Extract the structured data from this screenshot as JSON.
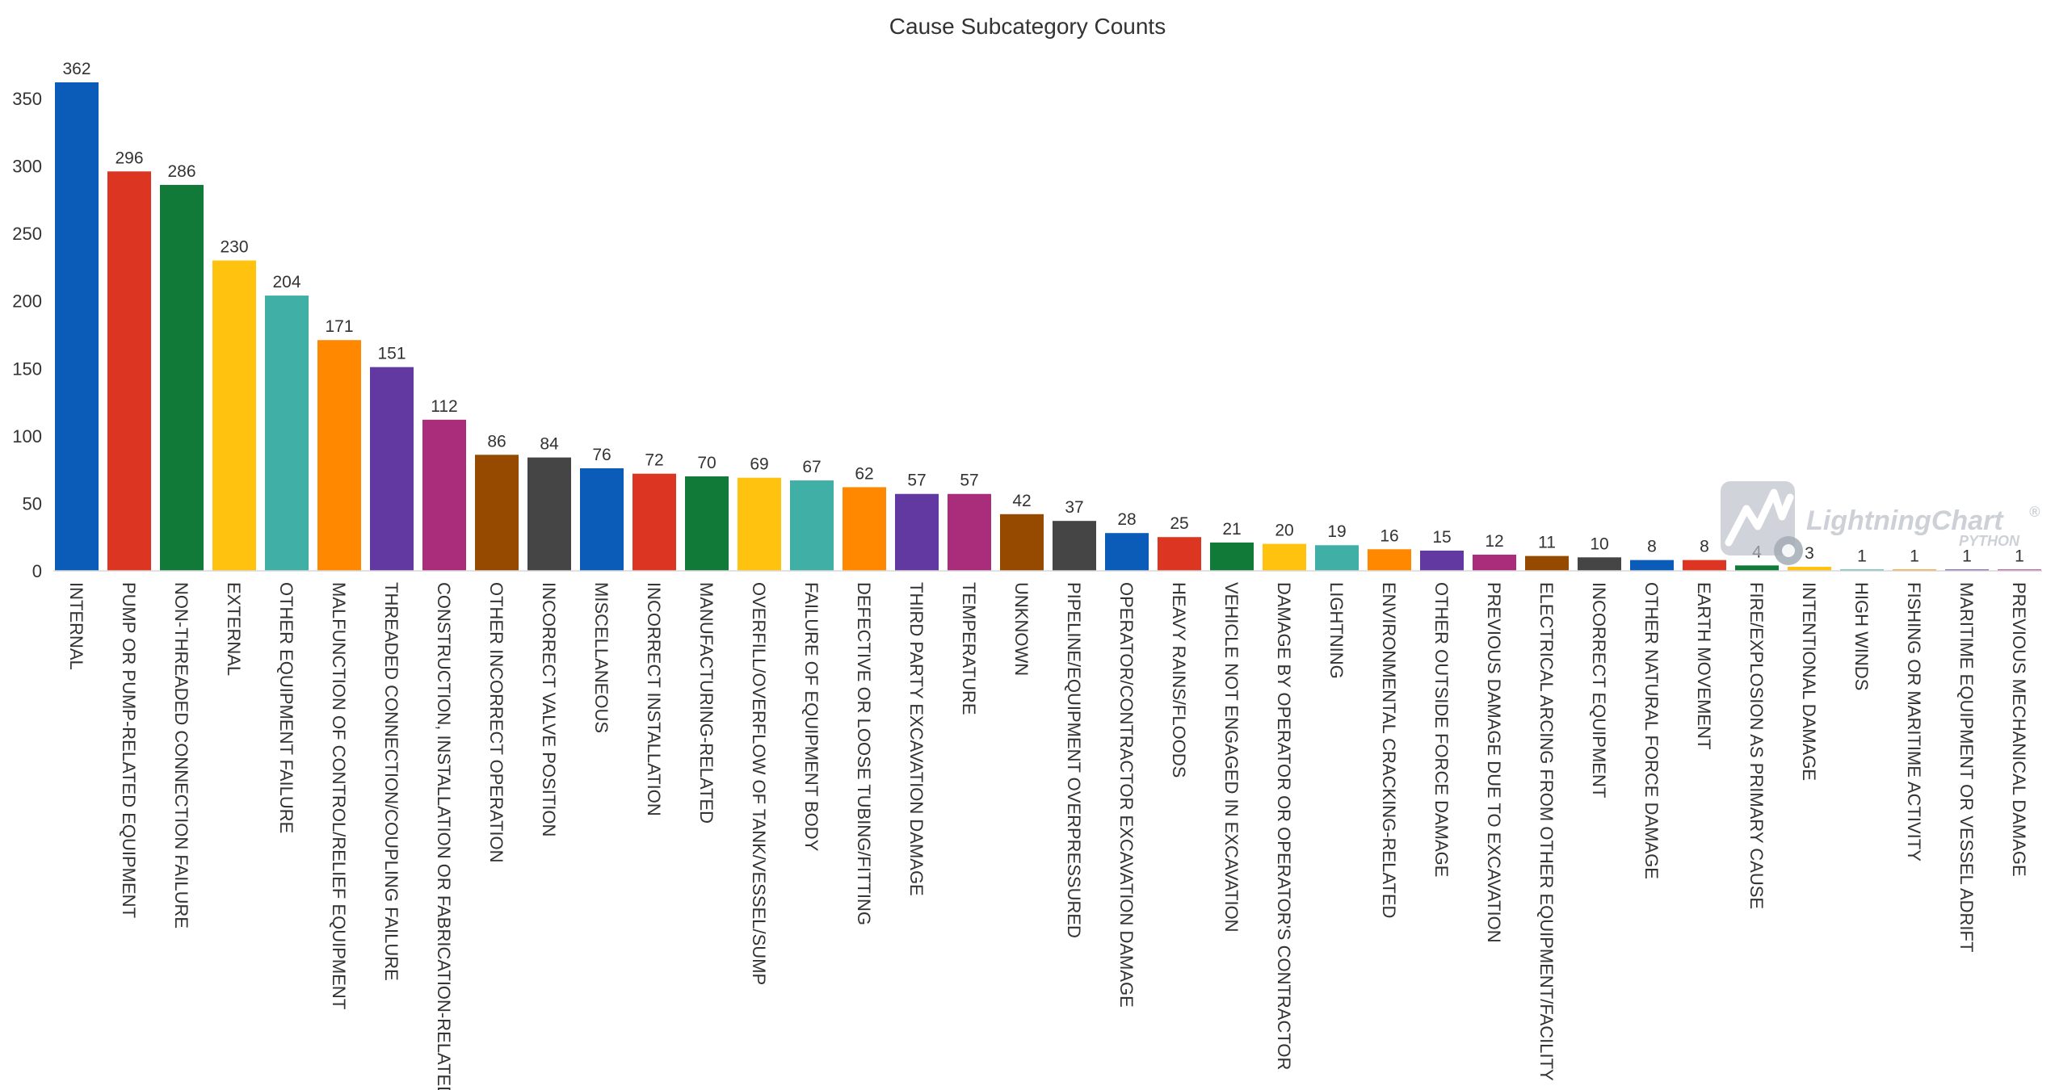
{
  "chart_data": {
    "type": "bar",
    "title": "Cause Subcategory Counts",
    "xlabel": "",
    "ylabel": "",
    "ylim": [
      0,
      362
    ],
    "yticks": [
      0,
      50,
      100,
      150,
      200,
      250,
      300,
      350
    ],
    "grid": false,
    "legend": "none",
    "data_labels": true,
    "categories": [
      "INTERNAL",
      "PUMP OR PUMP-RELATED EQUIPMENT",
      "NON-THREADED CONNECTION FAILURE",
      "EXTERNAL",
      "OTHER EQUIPMENT FAILURE",
      "MALFUNCTION OF CONTROL/RELIEF EQUIPMENT",
      "THREADED CONNECTION/COUPLING FAILURE",
      "CONSTRUCTION, INSTALLATION OR FABRICATION-RELATED",
      "OTHER INCORRECT OPERATION",
      "INCORRECT VALVE POSITION",
      "MISCELLANEOUS",
      "INCORRECT INSTALLATION",
      "MANUFACTURING-RELATED",
      "OVERFILL/OVERFLOW OF TANK/VESSEL/SUMP",
      "FAILURE OF EQUIPMENT BODY",
      "DEFECTIVE OR LOOSE TUBING/FITTING",
      "THIRD PARTY EXCAVATION DAMAGE",
      "TEMPERATURE",
      "UNKNOWN",
      "PIPELINE/EQUIPMENT OVERPRESSURED",
      "OPERATOR/CONTRACTOR EXCAVATION DAMAGE",
      "HEAVY RAINS/FLOODS",
      "VEHICLE NOT ENGAGED IN EXCAVATION",
      "DAMAGE BY OPERATOR OR OPERATOR'S CONTRACTOR",
      "LIGHTNING",
      "ENVIRONMENTAL CRACKING-RELATED",
      "OTHER OUTSIDE FORCE DAMAGE",
      "PREVIOUS DAMAGE DUE TO EXCAVATION",
      "ELECTRICAL ARCING FROM OTHER EQUIPMENT/FACILITY",
      "INCORRECT EQUIPMENT",
      "OTHER NATURAL FORCE DAMAGE",
      "EARTH MOVEMENT",
      "FIRE/EXPLOSION AS PRIMARY CAUSE",
      "INTENTIONAL DAMAGE",
      "HIGH WINDS",
      "FISHING OR MARITIME ACTIVITY",
      "MARITIME EQUIPMENT OR VESSEL ADRIFT",
      "PREVIOUS MECHANICAL DAMAGE"
    ],
    "values": [
      362,
      296,
      286,
      230,
      204,
      171,
      151,
      112,
      86,
      84,
      76,
      72,
      70,
      69,
      67,
      62,
      57,
      57,
      42,
      37,
      28,
      25,
      21,
      20,
      19,
      16,
      15,
      12,
      11,
      10,
      8,
      8,
      4,
      3,
      1,
      1,
      1,
      1
    ],
    "palette": [
      "#0a5cb8",
      "#dc3522",
      "#127a39",
      "#ffc20e",
      "#40b0a6",
      "#ff8800",
      "#6239a0",
      "#aa2d7c",
      "#954a00",
      "#454545"
    ]
  },
  "watermark": {
    "icon": "lightningchart-logo-icon",
    "brand": "LightningChart",
    "registered": "®",
    "sub": "PYTHON"
  }
}
